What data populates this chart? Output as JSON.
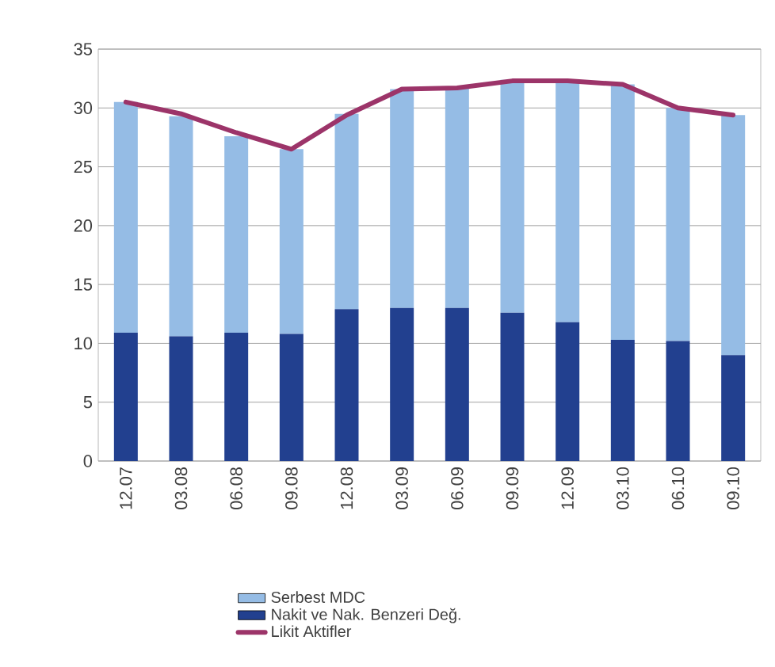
{
  "chart_data": {
    "type": "bar",
    "stacked": true,
    "categories": [
      "12.07",
      "03.08",
      "06.08",
      "09.08",
      "12.08",
      "03.09",
      "06.09",
      "09.09",
      "12.09",
      "03.10",
      "06.10",
      "09.10"
    ],
    "series": [
      {
        "name": "Nakit ve Nak. Benzeri Değ.",
        "color": "#22408f",
        "values": [
          10.9,
          10.6,
          10.9,
          10.8,
          12.9,
          13.0,
          13.0,
          12.6,
          11.8,
          10.3,
          10.2,
          9.0
        ]
      },
      {
        "name": "Serbest MDC",
        "color": "#95bce5",
        "values": [
          19.6,
          18.7,
          16.7,
          15.7,
          16.6,
          18.6,
          18.7,
          19.8,
          20.6,
          21.7,
          19.8,
          20.4
        ]
      },
      {
        "name": "Likit Aktifler",
        "color": "#9c3469",
        "type": "line",
        "values": [
          30.5,
          29.5,
          27.9,
          26.5,
          29.4,
          31.6,
          31.7,
          32.3,
          32.3,
          32.0,
          30.0,
          29.4
        ]
      }
    ],
    "ylim": [
      0,
      35
    ],
    "yticks": [
      0,
      5,
      10,
      15,
      20,
      25,
      30,
      35
    ],
    "grid": "y",
    "legend": "bottom"
  }
}
